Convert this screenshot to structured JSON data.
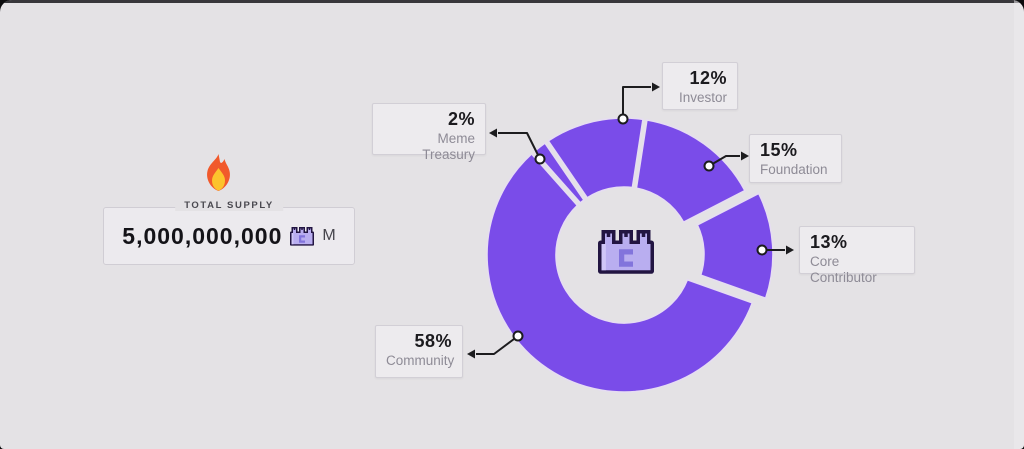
{
  "supply": {
    "label": "TOTAL SUPPLY",
    "value": "5,000,000,000",
    "unit": "M"
  },
  "callouts": [
    {
      "id": "investor",
      "pct": "12%",
      "label": "Investor"
    },
    {
      "id": "foundation",
      "pct": "15%",
      "label": "Foundation"
    },
    {
      "id": "core",
      "pct": "13%",
      "label": "Core Contributor"
    },
    {
      "id": "community",
      "pct": "58%",
      "label": "Community"
    },
    {
      "id": "meme",
      "pct": "2%",
      "label": "Meme Treasury"
    }
  ],
  "chart_data": {
    "type": "pie",
    "variant": "donut",
    "categories": [
      "Investor",
      "Foundation",
      "Core Contributor",
      "Community",
      "Meme Treasury"
    ],
    "values": [
      12,
      15,
      13,
      58,
      2
    ],
    "unit": "%",
    "start_angle_deg": 325.6,
    "clockwise": true,
    "exploded_slice": "Core Contributor",
    "slice_color": "#7a4ce9",
    "slice_stroke": "#e6ddf2",
    "hole_color": "#e4e2e5",
    "line_color": "#1c1c1e",
    "legend_position": "callout-boxes-around-chart"
  },
  "icons": {
    "flame": "flame-icon",
    "token_badge": "pixel-token-badge-icon"
  },
  "colors": {
    "background": "#e4e2e5",
    "box_bg": "#edebee",
    "pct_text": "#1b1a1e",
    "label_text": "#8e8b96",
    "flame_outer": "#f1592b",
    "flame_inner": "#fcc32d",
    "icon_dark": "#221542",
    "icon_light": "#b9aef0",
    "icon_mid": "#8274dc"
  }
}
